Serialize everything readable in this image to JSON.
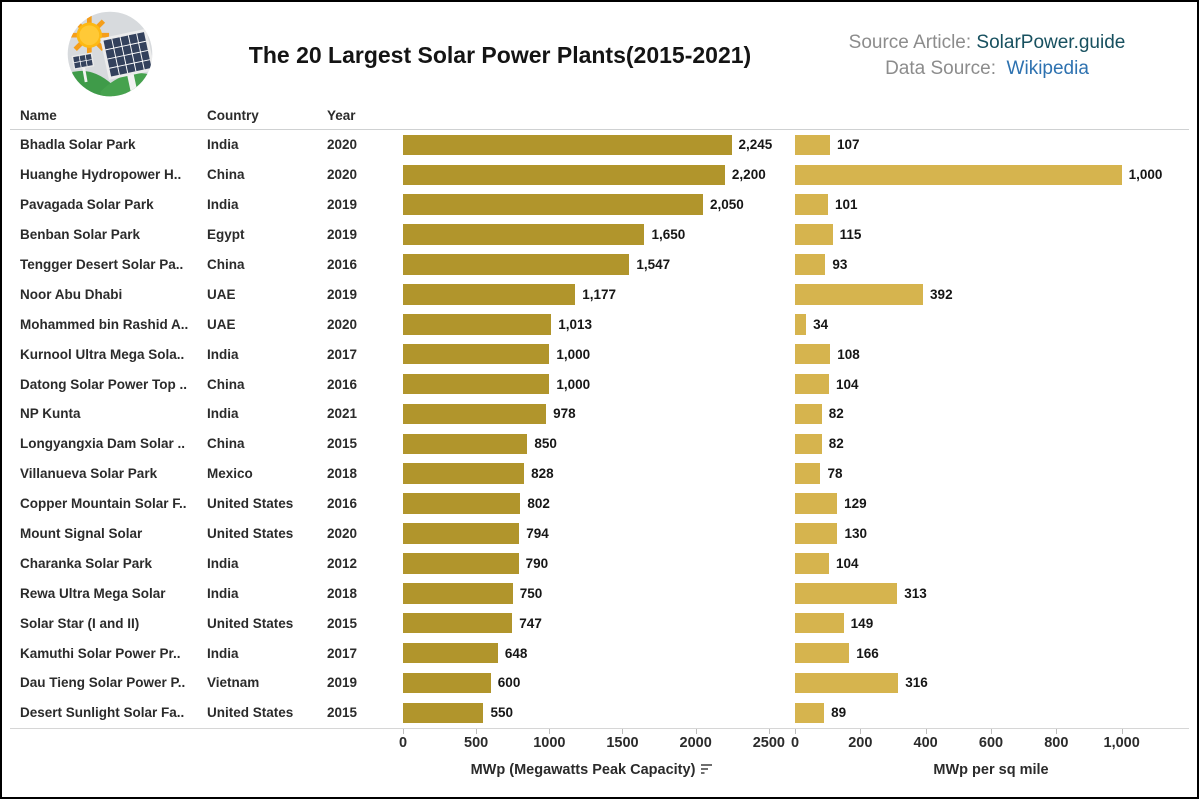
{
  "header": {
    "title": "The 20 Largest Solar Power Plants(2015-2021)",
    "source_article_label": "Source Article:",
    "source_article_value": "SolarPower.guide",
    "data_source_label": "Data Source:",
    "data_source_value": "Wikipedia",
    "logo": "solar-plant-logo"
  },
  "columns": {
    "name": "Name",
    "country": "Country",
    "year": "Year"
  },
  "colors": {
    "left_bar": "#B1952C",
    "right_bar": "#D6B44E",
    "source_value": "#17505F",
    "wikipedia_link": "#2E72B0",
    "label_gray": "#8C8C8C",
    "text_dark": "#2B2B2B"
  },
  "chart_data": {
    "type": "bar",
    "orientation": "horizontal",
    "title": "The 20 Largest Solar Power Plants(2015-2021)",
    "grid": false,
    "legend": false,
    "value_labels": true,
    "categories": [
      "Bhadla Solar Park",
      "Huanghe Hydropower H..",
      "Pavagada Solar Park",
      "Benban Solar Park",
      "Tengger Desert Solar Pa..",
      "Noor Abu Dhabi",
      "Mohammed bin Rashid A..",
      "Kurnool Ultra Mega Sola..",
      "Datong Solar Power Top ..",
      "NP Kunta",
      "Longyangxia Dam Solar ..",
      "Villanueva Solar Park",
      "Copper Mountain Solar F..",
      "Mount Signal Solar",
      "Charanka Solar Park",
      "Rewa Ultra Mega Solar",
      "Solar Star (I and II)",
      "Kamuthi Solar Power Pr..",
      "Dau Tieng Solar Power P..",
      "Desert Sunlight Solar Fa.."
    ],
    "countries": [
      "India",
      "China",
      "India",
      "Egypt",
      "China",
      "UAE",
      "UAE",
      "India",
      "China",
      "India",
      "China",
      "Mexico",
      "United States",
      "United States",
      "India",
      "India",
      "United States",
      "India",
      "Vietnam",
      "United States"
    ],
    "years": [
      "2020",
      "2020",
      "2019",
      "2019",
      "2016",
      "2019",
      "2020",
      "2017",
      "2016",
      "2021",
      "2015",
      "2018",
      "2016",
      "2020",
      "2012",
      "2018",
      "2015",
      "2017",
      "2019",
      "2015"
    ],
    "series": [
      {
        "name": "MWp (Megawatts Peak Capacity)",
        "values": [
          2245,
          2200,
          2050,
          1650,
          1547,
          1177,
          1013,
          1000,
          1000,
          978,
          850,
          828,
          802,
          794,
          790,
          750,
          747,
          648,
          600,
          550
        ],
        "axis_ticks": [
          0,
          500,
          1000,
          1500,
          2000,
          2500
        ],
        "axis_tick_labels": [
          "0",
          "500",
          "1000",
          "1500",
          "2000",
          "2500"
        ],
        "axis_range": [
          0,
          2590
        ],
        "bar_color": "#B1952C",
        "sorted": "descending"
      },
      {
        "name": "MWp per sq mile",
        "values": [
          107,
          1000,
          101,
          115,
          93,
          392,
          34,
          108,
          104,
          82,
          82,
          78,
          129,
          130,
          104,
          313,
          149,
          166,
          316,
          89
        ],
        "axis_ticks": [
          0,
          200,
          400,
          600,
          800,
          1000
        ],
        "axis_tick_labels": [
          "0",
          "200",
          "400",
          "600",
          "800",
          "1,000"
        ],
        "axis_range": [
          0,
          1200
        ],
        "bar_color": "#D6B44E"
      }
    ]
  }
}
